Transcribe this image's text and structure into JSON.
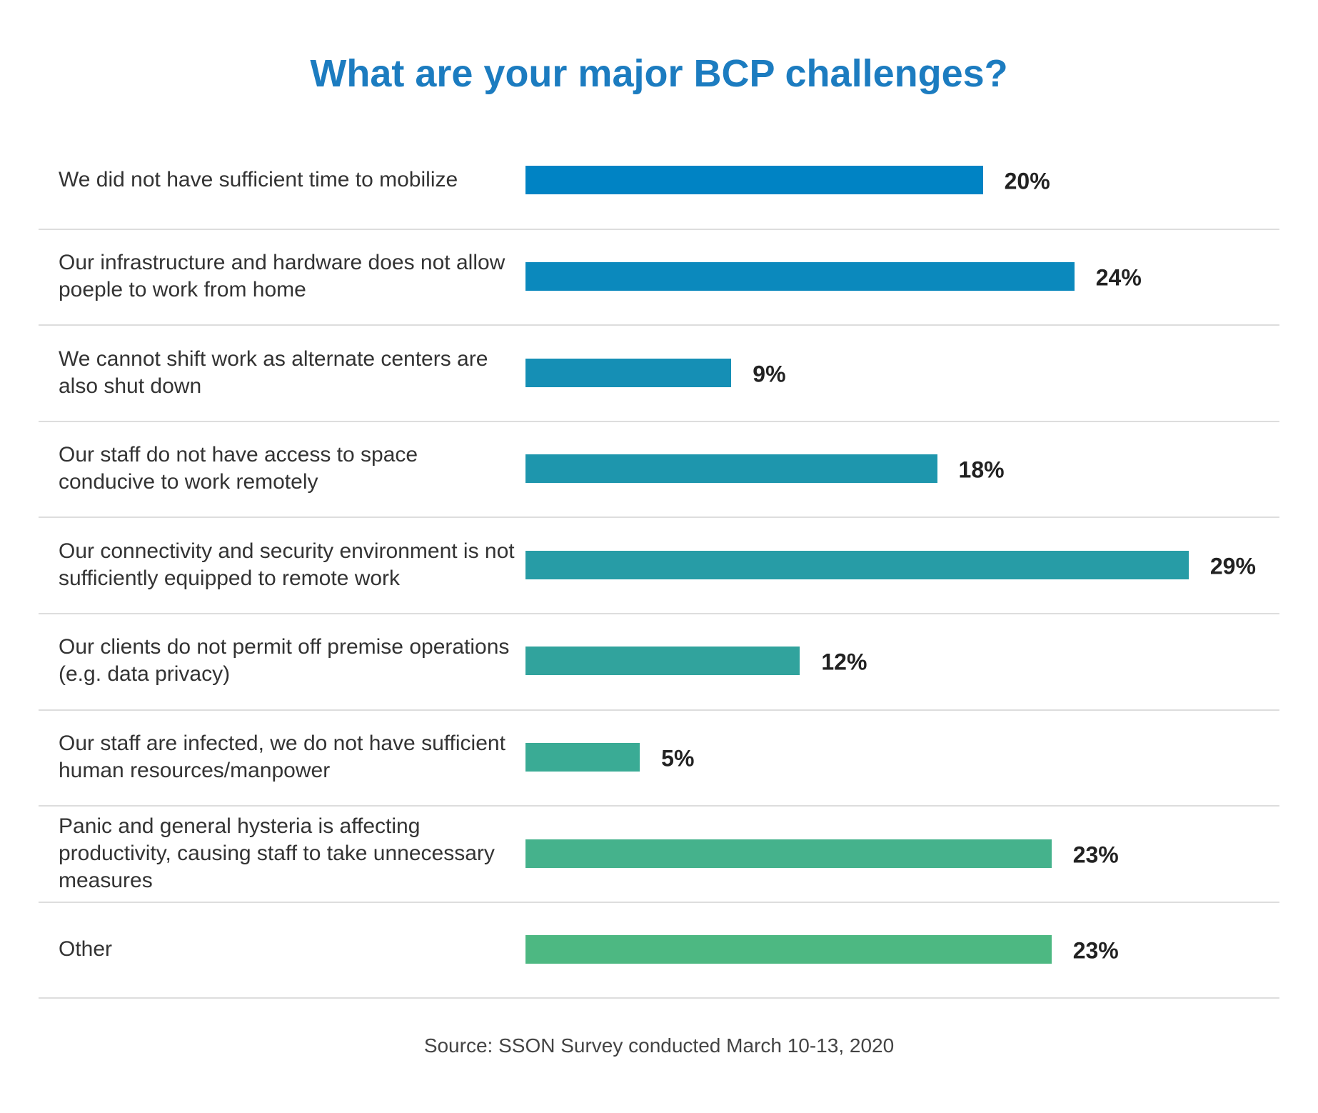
{
  "chart_data": {
    "type": "bar",
    "orientation": "horizontal",
    "title": "What are your major BCP challenges?",
    "categories": [
      "We did not have sufficient time to mobilize",
      "Our infrastructure and hardware does not allow poeple to work from home",
      "We cannot shift work as alternate centers are also shut down",
      "Our staff do not have access to space conducive to work remotely",
      "Our connectivity and security environment is not sufficiently equipped to remote work",
      "Our clients do not permit off premise operations (e.g. data privacy)",
      "Our staff are infected, we do not have sufficient human resources/manpower",
      "Panic and general hysteria is affecting productivity, causing staff to take unnecessary measures",
      "Other"
    ],
    "values": [
      20,
      24,
      9,
      18,
      29,
      12,
      5,
      23,
      23
    ],
    "value_labels": [
      "20%",
      "24%",
      "9%",
      "18%",
      "29%",
      "12%",
      "5%",
      "23%",
      "23%"
    ],
    "colors": [
      "#0083c4",
      "#0b89bd",
      "#158fb5",
      "#1e96ad",
      "#279ca6",
      "#31a39d",
      "#3aab95",
      "#45b28c",
      "#4db882"
    ],
    "source": "Source: SSON Survey conducted March 10-13, 2020"
  }
}
